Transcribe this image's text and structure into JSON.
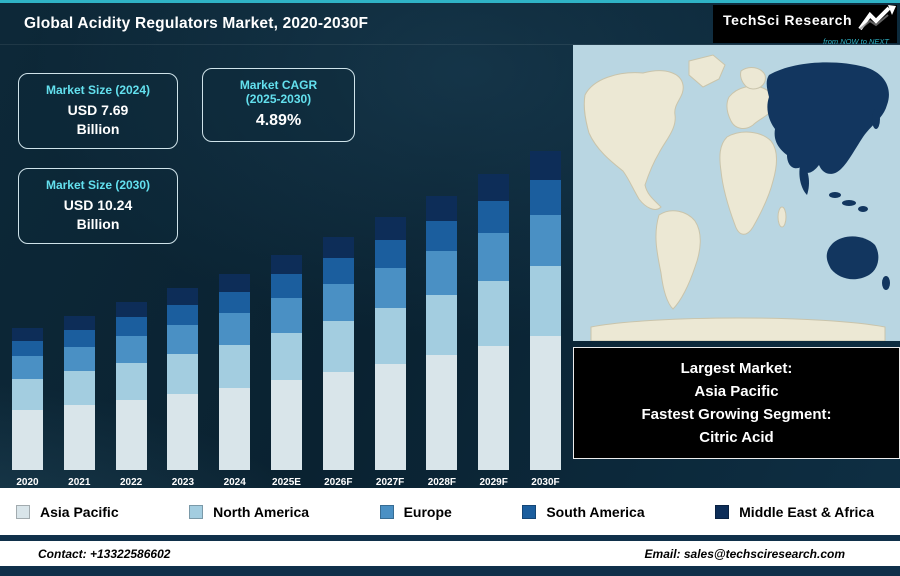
{
  "theme": {
    "accent": "#2fb3c6",
    "bg_navy": "#0a2231",
    "stat_label": "#63e0ee",
    "callout_bg": "#000000",
    "footer_navy": "#10304a",
    "map_ocean": "#b9d6e2",
    "map_land": "#ece8d4",
    "map_highlight": "#12365f"
  },
  "header": {
    "title": "Global Acidity Regulators Market, 2020-2030F",
    "logo": {
      "name": "TechSci Research",
      "tagline": "from NOW to NEXT"
    }
  },
  "stats": {
    "size_2024": {
      "label": "Market Size (2024)",
      "value": "USD 7.69",
      "unit": "Billion"
    },
    "cagr": {
      "label_line1": "Market CAGR",
      "label_line2": "(2025-2030)",
      "value": "4.89%"
    },
    "size_2030": {
      "label": "Market Size (2030)",
      "value": "USD 10.24",
      "unit": "Billion"
    }
  },
  "chart_data": {
    "type": "bar",
    "stacked": true,
    "title": "Global Acidity Regulators Market, 2020-2030F",
    "unit": "USD Billion",
    "grid": false,
    "legend_position": "bottom",
    "categories": [
      "2020",
      "2021",
      "2022",
      "2023",
      "2024",
      "2025E",
      "2026F",
      "2027F",
      "2028F",
      "2029F",
      "2030F"
    ],
    "series": [
      {
        "name": "Asia Pacific",
        "color": "#d9e5ea",
        "values": [
          2.75,
          2.86,
          2.98,
          3.1,
          3.23,
          3.39,
          3.55,
          3.73,
          3.91,
          4.1,
          4.3
        ]
      },
      {
        "name": "North America",
        "color": "#a3cde0",
        "values": [
          1.44,
          1.5,
          1.56,
          1.63,
          1.69,
          1.77,
          1.86,
          1.95,
          2.05,
          2.15,
          2.25
        ]
      },
      {
        "name": "Europe",
        "color": "#4a90c4",
        "values": [
          1.05,
          1.09,
          1.14,
          1.18,
          1.23,
          1.29,
          1.35,
          1.42,
          1.49,
          1.56,
          1.64
        ]
      },
      {
        "name": "South America",
        "color": "#1b5e9e",
        "values": [
          0.72,
          0.75,
          0.78,
          0.81,
          0.85,
          0.89,
          0.93,
          0.98,
          1.02,
          1.07,
          1.13
        ]
      },
      {
        "name": "Middle East & Africa",
        "color": "#0d2d58",
        "values": [
          0.59,
          0.61,
          0.64,
          0.67,
          0.69,
          0.73,
          0.76,
          0.8,
          0.84,
          0.88,
          0.92
        ]
      }
    ],
    "annotations": {
      "market_size_2024": "USD 7.69 Billion",
      "market_size_2030": "USD 10.24 Billion",
      "cagr_2025_2030": "4.89%"
    }
  },
  "map": {
    "highlight_region": "Asia Pacific"
  },
  "callout": {
    "line1": "Largest Market:",
    "line2": "Asia Pacific",
    "line3": "Fastest Growing Segment:",
    "line4": "Citric Acid"
  },
  "footer": {
    "contact": "Contact: +13322586602",
    "email": "Email: sales@techsciresearch.com"
  }
}
